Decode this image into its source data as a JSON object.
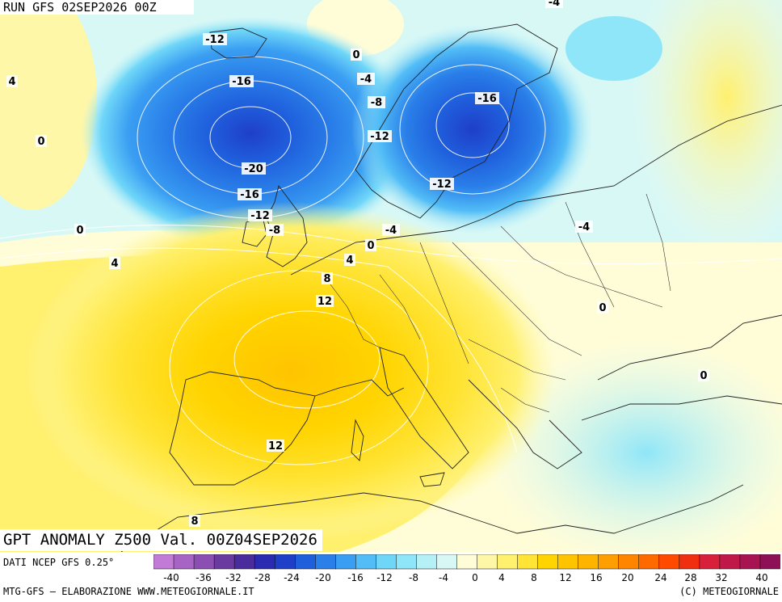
{
  "header": {
    "run": "RUN GFS 02SEP2026 00Z"
  },
  "title": "GPT ANOMALY Z500 Val. 00Z04SEP2026",
  "source": "DATI NCEP GFS 0.25°",
  "footer": {
    "left": "MTG-GFS – ELABORAZIONE WWW.METEOGIORNALE.IT",
    "right": "(C) METEOGIORNALE"
  },
  "colorbar": {
    "tick_labels": [
      "-40",
      "-36",
      "-32",
      "-28",
      "-24",
      "-20",
      "-16",
      "-12",
      "-8",
      "-4",
      "0",
      "4",
      "8",
      "12",
      "16",
      "20",
      "24",
      "28",
      "32",
      "40"
    ],
    "colors": [
      "#c27bd6",
      "#a764c4",
      "#8b4fb3",
      "#6b3aa0",
      "#4b2c9c",
      "#2a2bb0",
      "#1f3fc9",
      "#1f5fdc",
      "#2a7fe9",
      "#3a9ef2",
      "#52bdf6",
      "#6fd6f8",
      "#8fe6f8",
      "#b5f0f6",
      "#d8f8f6",
      "#fffdd8",
      "#fff7a8",
      "#fff06e",
      "#ffe436",
      "#ffd400",
      "#ffc400",
      "#ffb400",
      "#ff9e00",
      "#ff8400",
      "#ff6a00",
      "#ff4a00",
      "#f02e10",
      "#d8203a",
      "#c01848",
      "#a81452",
      "#8e1056"
    ]
  },
  "contour_labels": [
    {
      "text": "-4"
    },
    {
      "text": "-12"
    },
    {
      "text": "0"
    },
    {
      "text": "4"
    },
    {
      "text": "-16"
    },
    {
      "text": "-4"
    },
    {
      "text": "-8"
    },
    {
      "text": "-16"
    },
    {
      "text": "0"
    },
    {
      "text": "-12"
    },
    {
      "text": "-20"
    },
    {
      "text": "-16"
    },
    {
      "text": "-12"
    },
    {
      "text": "-12"
    },
    {
      "text": "-8"
    },
    {
      "text": "0"
    },
    {
      "text": "-4"
    },
    {
      "text": "0"
    },
    {
      "text": "4"
    },
    {
      "text": "4"
    },
    {
      "text": "8"
    },
    {
      "text": "12"
    },
    {
      "text": "-4"
    },
    {
      "text": "0"
    },
    {
      "text": "0"
    },
    {
      "text": "12"
    },
    {
      "text": "8"
    }
  ]
}
